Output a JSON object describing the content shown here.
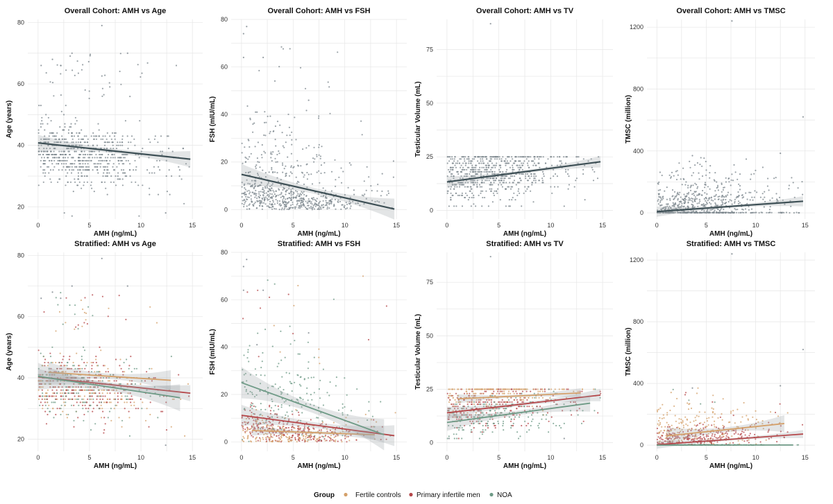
{
  "legend": {
    "title": "Group",
    "items": [
      {
        "label": "Fertile controls",
        "color": "#D4A06A"
      },
      {
        "label": "Primary infertile men",
        "color": "#B5474A"
      },
      {
        "label": "NOA",
        "color": "#6E9A86"
      }
    ]
  },
  "overall_color": "#3D4F55",
  "point_color": "#7B858C",
  "chart_data": [
    {
      "type": "scatter",
      "title": "Overall Cohort: AMH vs Age",
      "xlabel": "AMH (ng/mL)",
      "ylabel": "Age (years)",
      "xlim": [
        -1,
        16
      ],
      "ylim": [
        16,
        81
      ],
      "xticks": [
        0,
        5,
        10,
        15
      ],
      "yticks": [
        20,
        40,
        60,
        80
      ],
      "variable": "age",
      "stratified": false,
      "fits": [
        {
          "group": "Overall",
          "x": [
            0,
            14.8
          ],
          "y": [
            40.8,
            35.5
          ],
          "ci": 1.2
        }
      ]
    },
    {
      "type": "scatter",
      "title": "Overall Cohort: AMH vs FSH",
      "xlabel": "AMH (ng/mL)",
      "ylabel": "FSH (mIU/mL)",
      "xlim": [
        -1,
        16
      ],
      "ylim": [
        -4,
        80
      ],
      "xticks": [
        0,
        5,
        10,
        15
      ],
      "yticks": [
        0,
        20,
        40,
        60,
        80
      ],
      "variable": "fsh",
      "stratified": false,
      "fits": [
        {
          "group": "Overall",
          "x": [
            0,
            14.8
          ],
          "y": [
            14.8,
            0.2
          ],
          "ci": 2.0
        }
      ]
    },
    {
      "type": "scatter",
      "title": "Overall Cohort: AMH vs TV",
      "xlabel": "AMH (ng/mL)",
      "ylabel": "Testicular Volume (mL)",
      "xlim": [
        -1,
        16
      ],
      "ylim": [
        -4,
        89
      ],
      "xticks": [
        0,
        5,
        10,
        15
      ],
      "yticks": [
        0,
        25,
        50,
        75
      ],
      "variable": "tv",
      "stratified": false,
      "fits": [
        {
          "group": "Overall",
          "x": [
            0,
            14.8
          ],
          "y": [
            13.3,
            22.7
          ],
          "ci": 1.2
        }
      ]
    },
    {
      "type": "scatter",
      "title": "Overall Cohort: AMH vs TMSC",
      "xlabel": "AMH (ng/mL)",
      "ylabel": "TMSC (million)",
      "xlim": [
        -1,
        16
      ],
      "ylim": [
        -40,
        1250
      ],
      "xticks": [
        0,
        5,
        10,
        15
      ],
      "yticks": [
        0,
        400,
        800,
        1200
      ],
      "variable": "tmsc",
      "stratified": false,
      "fits": [
        {
          "group": "Overall",
          "x": [
            0,
            14.8
          ],
          "y": [
            8,
            75
          ],
          "ci": 15
        }
      ]
    },
    {
      "type": "scatter",
      "title": "Stratified: AMH vs Age",
      "xlabel": "AMH (ng/mL)",
      "ylabel": "Age (years)",
      "xlim": [
        -1,
        16
      ],
      "ylim": [
        16,
        81
      ],
      "xticks": [
        0,
        5,
        10,
        15
      ],
      "yticks": [
        20,
        40,
        60,
        80
      ],
      "variable": "age",
      "stratified": true,
      "fits": [
        {
          "group": "Fertile controls",
          "x": [
            1,
            12.9
          ],
          "y": [
            41.8,
            39.2
          ],
          "ci": 1.5
        },
        {
          "group": "Primary infertile men",
          "x": [
            0,
            14.8
          ],
          "y": [
            40.3,
            35.0
          ],
          "ci": 1.2
        },
        {
          "group": "NOA",
          "x": [
            0,
            13.8
          ],
          "y": [
            40.5,
            33.5
          ],
          "ci": 2.0
        }
      ]
    },
    {
      "type": "scatter",
      "title": "Stratified: AMH vs FSH",
      "xlabel": "AMH (ng/mL)",
      "ylabel": "FSH (mIU/mL)",
      "xlim": [
        -1,
        16
      ],
      "ylim": [
        -4,
        80
      ],
      "xticks": [
        0,
        5,
        10,
        15
      ],
      "yticks": [
        0,
        20,
        40,
        60,
        80
      ],
      "variable": "fsh",
      "stratified": true,
      "fits": [
        {
          "group": "Fertile controls",
          "x": [
            1,
            12.9
          ],
          "y": [
            4.8,
            3.0
          ],
          "ci": 1.0
        },
        {
          "group": "Primary infertile men",
          "x": [
            0,
            14.8
          ],
          "y": [
            11.2,
            2.6
          ],
          "ci": 2.0
        },
        {
          "group": "NOA",
          "x": [
            0,
            13.8
          ],
          "y": [
            25.0,
            3.0
          ],
          "ci": 3.0
        }
      ]
    },
    {
      "type": "scatter",
      "title": "Stratified: AMH vs TV",
      "xlabel": "AMH (ng/mL)",
      "ylabel": "Testicular Volume (mL)",
      "xlim": [
        -1,
        16
      ],
      "ylim": [
        -4,
        89
      ],
      "xticks": [
        0,
        5,
        10,
        15
      ],
      "yticks": [
        0,
        25,
        50,
        75
      ],
      "variable": "tv",
      "stratified": true,
      "fits": [
        {
          "group": "Fertile controls",
          "x": [
            1,
            12.9
          ],
          "y": [
            20.5,
            23.3
          ],
          "ci": 1.0
        },
        {
          "group": "Primary infertile men",
          "x": [
            0,
            14.8
          ],
          "y": [
            14.0,
            22.3
          ],
          "ci": 1.3
        },
        {
          "group": "NOA",
          "x": [
            0,
            13.8
          ],
          "y": [
            9.5,
            18.5
          ],
          "ci": 1.8
        }
      ]
    },
    {
      "type": "scatter",
      "title": "Stratified: AMH vs TMSC",
      "xlabel": "AMH (ng/mL)",
      "ylabel": "TMSC (million)",
      "xlim": [
        -1,
        16
      ],
      "ylim": [
        -40,
        1250
      ],
      "xticks": [
        0,
        5,
        10,
        15
      ],
      "yticks": [
        0,
        400,
        800,
        1200
      ],
      "variable": "tmsc",
      "stratified": true,
      "fits": [
        {
          "group": "Fertile controls",
          "x": [
            1,
            12.9
          ],
          "y": [
            60,
            140
          ],
          "ci": 25
        },
        {
          "group": "Primary infertile men",
          "x": [
            0,
            14.8
          ],
          "y": [
            3,
            72
          ],
          "ci": 12
        },
        {
          "group": "NOA",
          "x": [
            0,
            13.8
          ],
          "y": [
            0,
            1
          ],
          "ci": 2
        }
      ]
    }
  ]
}
